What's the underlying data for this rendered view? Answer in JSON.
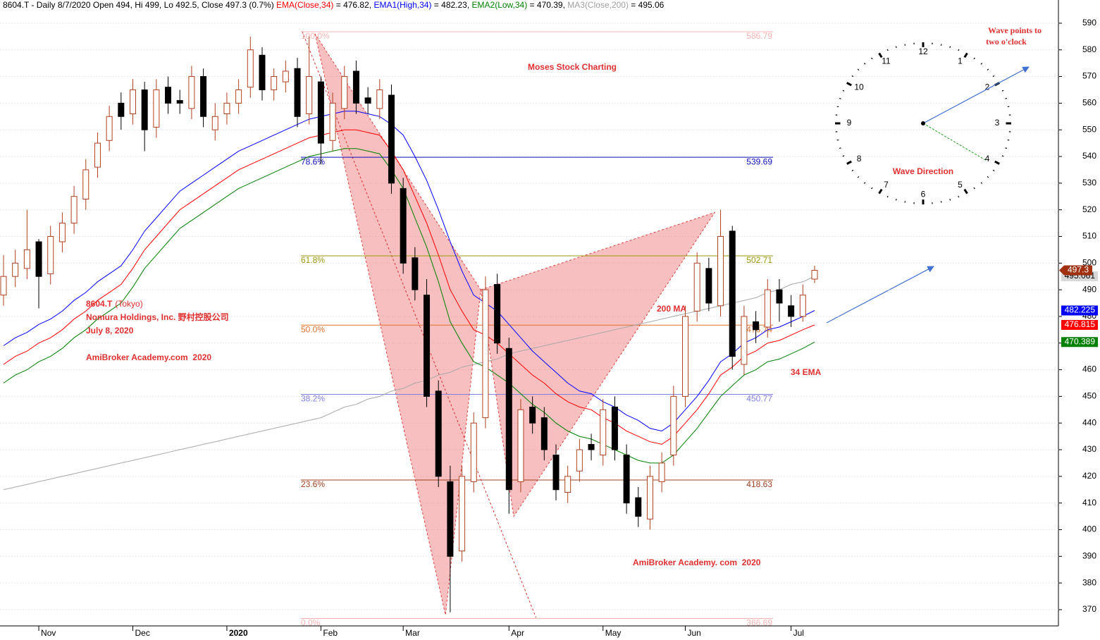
{
  "header": [
    {
      "text": "8604.T - Daily 8/7/2020 Open 494, Hi 499, Lo 492.5, Close 497.3 (0.7%) ",
      "color": "#000000"
    },
    {
      "text": "EMA(Close,34)",
      "color": "#ff0000"
    },
    {
      "text": " = 476.82, ",
      "color": "#000000"
    },
    {
      "text": "EMA1(High,34)",
      "color": "#0000ff"
    },
    {
      "text": " = 482.23, ",
      "color": "#000000"
    },
    {
      "text": "EMA2(Low,34)",
      "color": "#008000"
    },
    {
      "text": " = 470.39, ",
      "color": "#000000"
    },
    {
      "text": "MA3(Close,200)",
      "color": "#a0a0a0"
    },
    {
      "text": " = 495.06",
      "color": "#000000"
    }
  ],
  "chart_data": {
    "type": "candlestick",
    "categories": [
      null,
      null,
      null,
      "Nov",
      null,
      null,
      null,
      null,
      null,
      null,
      null,
      "Dec",
      null,
      null,
      null,
      null,
      null,
      null,
      null,
      "2020",
      null,
      null,
      null,
      null,
      null,
      null,
      null,
      "Feb",
      null,
      null,
      null,
      null,
      null,
      null,
      "Mar",
      null,
      null,
      null,
      null,
      null,
      null,
      null,
      null,
      "Apr",
      null,
      null,
      null,
      null,
      null,
      null,
      null,
      "May",
      null,
      null,
      null,
      null,
      null,
      null,
      "Jun",
      null,
      null,
      null,
      null,
      null,
      null,
      null,
      null,
      "Jul",
      null,
      null
    ],
    "open": [
      488,
      495,
      498,
      508,
      496,
      508,
      515,
      524,
      536,
      546,
      560,
      556,
      565,
      551,
      566,
      561,
      558,
      570,
      550,
      556,
      560,
      566,
      578,
      565,
      568,
      573,
      556,
      568,
      546,
      558,
      572,
      562,
      558,
      563,
      528,
      502,
      488,
      452,
      418,
      392,
      418,
      442,
      492,
      468,
      418,
      446,
      442,
      428,
      414,
      422,
      432,
      428,
      446,
      428,
      412,
      404,
      418,
      428,
      450,
      482,
      498,
      484,
      512,
      462,
      478,
      476,
      490,
      484,
      480,
      494
    ],
    "high": [
      503,
      505,
      520,
      509,
      514,
      519,
      529,
      539,
      549,
      559,
      564,
      569,
      568,
      569,
      570,
      565,
      574,
      573,
      560,
      564,
      569,
      585,
      581,
      573,
      576,
      577,
      585,
      570,
      564,
      574,
      576,
      566,
      569,
      567,
      532,
      506,
      494,
      456,
      424,
      424,
      444,
      495,
      496,
      472,
      449,
      450,
      446,
      432,
      424,
      434,
      436,
      449,
      450,
      432,
      416,
      424,
      429,
      454,
      484,
      504,
      502,
      520,
      514,
      484,
      482,
      494,
      494,
      488,
      492,
      499
    ],
    "low": [
      484,
      491,
      494,
      483,
      492,
      504,
      511,
      520,
      532,
      542,
      550,
      552,
      542,
      547,
      556,
      556,
      554,
      551,
      546,
      552,
      556,
      562,
      561,
      561,
      564,
      551,
      552,
      537,
      542,
      554,
      556,
      556,
      554,
      526,
      496,
      486,
      446,
      416,
      369,
      388,
      414,
      438,
      466,
      406,
      414,
      436,
      426,
      411,
      410,
      418,
      426,
      424,
      426,
      406,
      401,
      400,
      414,
      424,
      446,
      478,
      482,
      480,
      460,
      458,
      470,
      472,
      478,
      476,
      478,
      492.5
    ],
    "close": [
      495,
      500,
      505,
      495,
      510,
      515,
      525,
      535,
      545,
      555,
      555,
      565,
      550,
      565,
      560,
      560,
      570,
      555,
      555,
      560,
      565,
      580,
      565,
      570,
      572,
      555,
      570,
      545,
      560,
      570,
      560,
      560,
      565,
      530,
      500,
      490,
      450,
      420,
      390,
      420,
      440,
      490,
      470,
      415,
      445,
      440,
      430,
      415,
      420,
      430,
      430,
      445,
      430,
      410,
      405,
      420,
      425,
      450,
      480,
      500,
      485,
      510,
      465,
      480,
      475,
      490,
      485,
      480,
      488,
      497.3
    ],
    "up_color": "#b04020",
    "down_color": "#000000",
    "series": [
      {
        "color": "#a8a8a8",
        "values": [
          415,
          416,
          417,
          418,
          419,
          420,
          421,
          422,
          423,
          424,
          425,
          426,
          427,
          428,
          429,
          430,
          431,
          432,
          433,
          434,
          435,
          436,
          437,
          438,
          439,
          440,
          441,
          442,
          444,
          446,
          447,
          449,
          450,
          452,
          453,
          455,
          456,
          458,
          459,
          461,
          462,
          463,
          464,
          466,
          467,
          468,
          469,
          470,
          471,
          472,
          473,
          474,
          475,
          476,
          477,
          478,
          479,
          480,
          481,
          482,
          483,
          484,
          485,
          486,
          487,
          489,
          490,
          492,
          493,
          495.061
        ]
      },
      {
        "color": "#0000ff",
        "values": [
          469,
          472,
          474,
          477,
          479,
          482,
          486,
          489,
          493,
          496,
          499,
          505,
          512,
          517,
          522,
          527,
          530,
          533,
          536,
          539,
          542,
          544,
          546,
          548,
          550,
          552,
          554,
          555,
          556,
          557,
          557,
          556,
          555,
          552,
          548,
          540,
          531,
          520,
          508,
          497,
          488,
          485,
          482,
          477,
          472,
          467,
          463,
          459,
          455,
          452,
          451,
          448,
          446,
          443,
          441,
          438,
          437,
          440,
          445,
          450,
          456,
          463,
          466,
          470,
          472,
          475,
          476,
          478,
          480,
          482.225
        ]
      },
      {
        "color": "#ff0000",
        "values": [
          462,
          465,
          467,
          470,
          472,
          475,
          479,
          482,
          486,
          489,
          492,
          498,
          505,
          510,
          515,
          520,
          523,
          526,
          529,
          532,
          535,
          537,
          539,
          541,
          543,
          545,
          547,
          548,
          549,
          550,
          550,
          549,
          548,
          542,
          535,
          525,
          515,
          503,
          490,
          482,
          475,
          473,
          470,
          466,
          462,
          458,
          455,
          451,
          448,
          446,
          445,
          442,
          440,
          437,
          435,
          433,
          432,
          435,
          440,
          445,
          451,
          458,
          461,
          465,
          467,
          470,
          471,
          473,
          475,
          476.815
        ]
      },
      {
        "color": "#008000",
        "values": [
          455,
          458,
          460,
          463,
          465,
          468,
          472,
          475,
          479,
          482,
          485,
          491,
          498,
          503,
          508,
          513,
          516,
          519,
          522,
          525,
          528,
          530,
          532,
          534,
          536,
          538,
          540,
          541,
          542,
          543,
          543,
          542,
          541,
          535,
          528,
          517,
          506,
          493,
          478,
          470,
          463,
          461,
          458,
          455,
          451,
          447,
          444,
          440,
          437,
          435,
          434,
          432,
          430,
          428,
          426,
          425,
          425,
          428,
          433,
          438,
          444,
          450,
          454,
          458,
          460,
          463,
          464,
          466,
          468,
          470.389
        ]
      }
    ],
    "ylim": [
      363.9,
      598.7
    ],
    "yticks": [
      370,
      380,
      390,
      400,
      410,
      420,
      430,
      440,
      450,
      460,
      470,
      480,
      490,
      500,
      510,
      520,
      530,
      540,
      550,
      560,
      570,
      580,
      590
    ],
    "grid": true,
    "fib_levels": [
      {
        "label": "100.0%",
        "value": 586.79,
        "color": "#f4b4b4"
      },
      {
        "label": "78.6%",
        "value": 539.69,
        "color": "#1010c0"
      },
      {
        "label": "61.8%",
        "value": 502.71,
        "color": "#9a9a10"
      },
      {
        "label": "50.0%",
        "value": 476.74,
        "color": "#e07030"
      },
      {
        "label": "38.2%",
        "value": 450.77,
        "color": "#8080e0"
      },
      {
        "label": "23.6%",
        "value": 418.63,
        "color": "#a04020"
      },
      {
        "label": "0.0%",
        "value": 366.69,
        "color": "#f4b4b4"
      }
    ],
    "pattern_points": [
      {
        "x": 26.5,
        "y": 586
      },
      {
        "x": 37.6,
        "y": 368
      },
      {
        "x": 40.6,
        "y": 490
      },
      {
        "x": 43.4,
        "y": 405
      },
      {
        "x": 60.5,
        "y": 519
      }
    ],
    "trend_line": [
      {
        "x": 25.4,
        "y": 587
      },
      {
        "x": 45.3,
        "y": 367
      }
    ],
    "annotations": {
      "site": "Moses Stock Charting",
      "ticker": "8604.T",
      "exchange": "(Tokyo)",
      "company": "Nomura Holdings, Inc. 野村控股公司",
      "date": "July 8, 2020",
      "brand1": "AmiBroker Academy.com  2020",
      "ma": "200 MA",
      "ema": "34 EMA",
      "brand2": "AmiBroker Academy. com  2020"
    }
  },
  "clock": {
    "numbers": [
      "12",
      "1",
      "2",
      "3",
      "4",
      "5",
      "6",
      "7",
      "8",
      "9",
      "10",
      "11"
    ],
    "title": "Wave Direction",
    "note": [
      "Wave points to",
      "two o'clock"
    ]
  }
}
